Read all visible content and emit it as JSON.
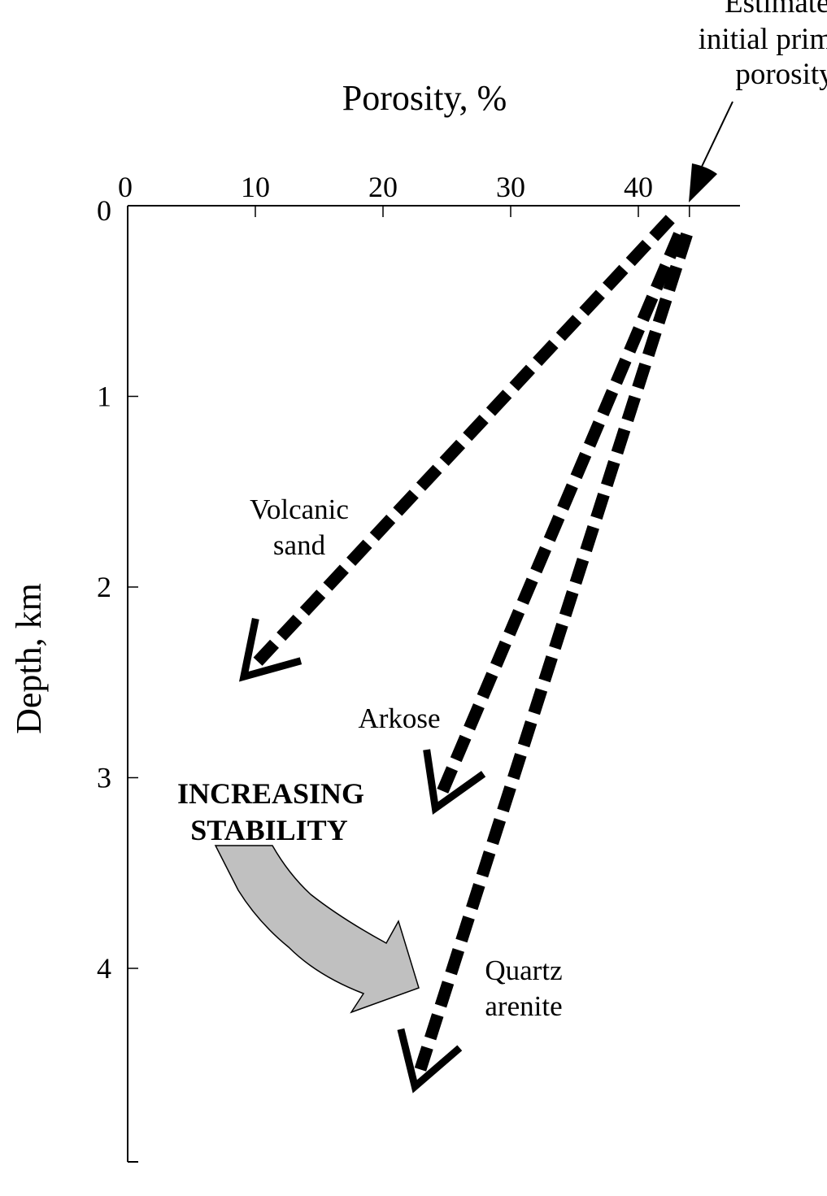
{
  "chart_data": {
    "type": "line",
    "title": "",
    "xlabel": "Porosity, %",
    "ylabel": "Depth, km",
    "xlim": [
      0,
      48
    ],
    "ylim": [
      5,
      0
    ],
    "x_ticks": [
      "0",
      "10",
      "20",
      "30",
      "40"
    ],
    "y_ticks": [
      "0",
      "1",
      "2",
      "3",
      "4"
    ],
    "grid": false,
    "series": [
      {
        "name": "Volcanic sand",
        "label_lines": [
          "Volcanic",
          "sand"
        ],
        "x": [
          42.5,
          9.1
        ],
        "y": [
          0.07,
          2.47
        ],
        "style": "dashed-arrow"
      },
      {
        "name": "Arkose",
        "label_lines": [
          "Arkose"
        ],
        "x": [
          43.2,
          24.1
        ],
        "y": [
          0.15,
          3.16
        ],
        "style": "dashed-arrow"
      },
      {
        "name": "Quartz arenite",
        "label_lines": [
          "Quartz",
          "arenite"
        ],
        "x": [
          43.8,
          22.5
        ],
        "y": [
          0.15,
          4.62
        ],
        "style": "dashed-arrow"
      }
    ],
    "annotations": {
      "initial_porosity": {
        "lines": [
          "Estimated",
          "initial primary",
          "porosity"
        ],
        "x": 44,
        "y": 0
      },
      "stability": {
        "lines": [
          "INCREASING",
          "STABILITY"
        ],
        "arrow_color": "#c0c0c0"
      }
    }
  }
}
